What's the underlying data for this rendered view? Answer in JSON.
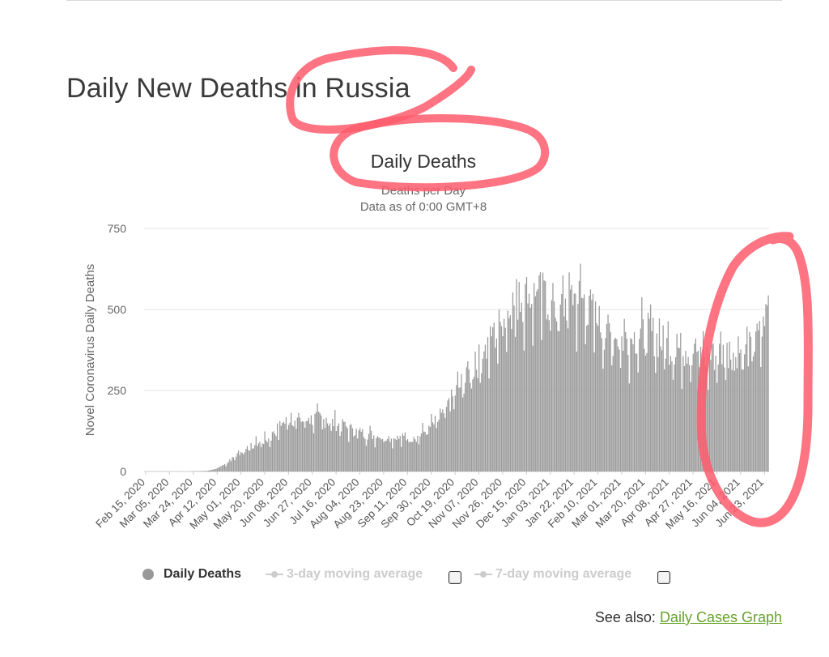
{
  "page": {
    "title": "Daily New Deaths in Russia",
    "see_also_label": "See also:",
    "see_also_link": "Daily Cases Graph"
  },
  "colors": {
    "bar": "#999999",
    "annotation": "#ff5c6c",
    "link": "#66a22a",
    "legend_off": "#cccccc"
  },
  "legend": {
    "items": [
      {
        "label": "Daily Deaths",
        "icon": "circle-marker-icon",
        "active": true
      },
      {
        "label": "3-day moving average",
        "icon": "line-marker-icon",
        "active": false
      },
      {
        "label": "7-day moving average",
        "icon": "line-marker-icon",
        "active": false
      }
    ]
  },
  "chart_data": {
    "type": "bar",
    "title": "Daily Deaths",
    "subtitle": [
      "Deaths per Day",
      "Data as of 0:00 GMT+8"
    ],
    "ylabel": "Novel Coronavirus Daily Deaths",
    "ylim": [
      0,
      750
    ],
    "yticks": [
      0,
      250,
      500,
      750
    ],
    "x_range": [
      "2020-02-15",
      "2021-06-27"
    ],
    "xticks": [
      "Feb 15, 2020",
      "Mar 05, 2020",
      "Mar 24, 2020",
      "Apr 12, 2020",
      "May 01, 2020",
      "May 20, 2020",
      "Jun 08, 2020",
      "Jun 27, 2020",
      "Jul 16, 2020",
      "Aug 04, 2020",
      "Aug 23, 2020",
      "Sep 11, 2020",
      "Sep 30, 2020",
      "Oct 19, 2020",
      "Nov 07, 2020",
      "Nov 26, 2020",
      "Dec 15, 2020",
      "Jan 03, 2021",
      "Jan 22, 2021",
      "Feb 10, 2021",
      "Mar 01, 2021",
      "Mar 20, 2021",
      "Apr 08, 2021",
      "Apr 27, 2021",
      "May 16, 2021",
      "Jun 04, 2021",
      "Jun 23, 2021"
    ],
    "grid": true,
    "legend_position": "bottom",
    "series_anchor_points": [
      [
        "2020-02-15",
        0
      ],
      [
        "2020-03-20",
        0
      ],
      [
        "2020-04-05",
        2
      ],
      [
        "2020-04-12",
        8
      ],
      [
        "2020-04-20",
        25
      ],
      [
        "2020-05-01",
        60
      ],
      [
        "2020-05-15",
        90
      ],
      [
        "2020-05-25",
        105
      ],
      [
        "2020-06-01",
        140
      ],
      [
        "2020-06-10",
        170
      ],
      [
        "2020-06-20",
        160
      ],
      [
        "2020-07-01",
        170
      ],
      [
        "2020-07-15",
        155
      ],
      [
        "2020-07-25",
        140
      ],
      [
        "2020-08-04",
        125
      ],
      [
        "2020-08-20",
        112
      ],
      [
        "2020-09-05",
        105
      ],
      [
        "2020-09-20",
        110
      ],
      [
        "2020-10-01",
        145
      ],
      [
        "2020-10-10",
        175
      ],
      [
        "2020-10-20",
        250
      ],
      [
        "2020-10-31",
        310
      ],
      [
        "2020-11-10",
        365
      ],
      [
        "2020-11-20",
        430
      ],
      [
        "2020-12-01",
        510
      ],
      [
        "2020-12-10",
        555
      ],
      [
        "2020-12-20",
        560
      ],
      [
        "2021-01-01",
        555
      ],
      [
        "2021-01-10",
        500
      ],
      [
        "2021-01-20",
        560
      ],
      [
        "2021-01-31",
        545
      ],
      [
        "2021-02-10",
        480
      ],
      [
        "2021-02-20",
        430
      ],
      [
        "2021-03-01",
        420
      ],
      [
        "2021-03-15",
        430
      ],
      [
        "2021-03-25",
        440
      ],
      [
        "2021-04-05",
        405
      ],
      [
        "2021-04-20",
        385
      ],
      [
        "2021-05-01",
        385
      ],
      [
        "2021-05-10",
        360
      ],
      [
        "2021-05-20",
        375
      ],
      [
        "2021-06-01",
        385
      ],
      [
        "2021-06-10",
        380
      ],
      [
        "2021-06-15",
        400
      ],
      [
        "2021-06-20",
        430
      ],
      [
        "2021-06-24",
        460
      ],
      [
        "2021-06-27",
        545
      ]
    ],
    "annotations": [
      "circle around 'in Russia'",
      "circle around 'Daily Deaths'",
      "circle around latest bars"
    ]
  }
}
